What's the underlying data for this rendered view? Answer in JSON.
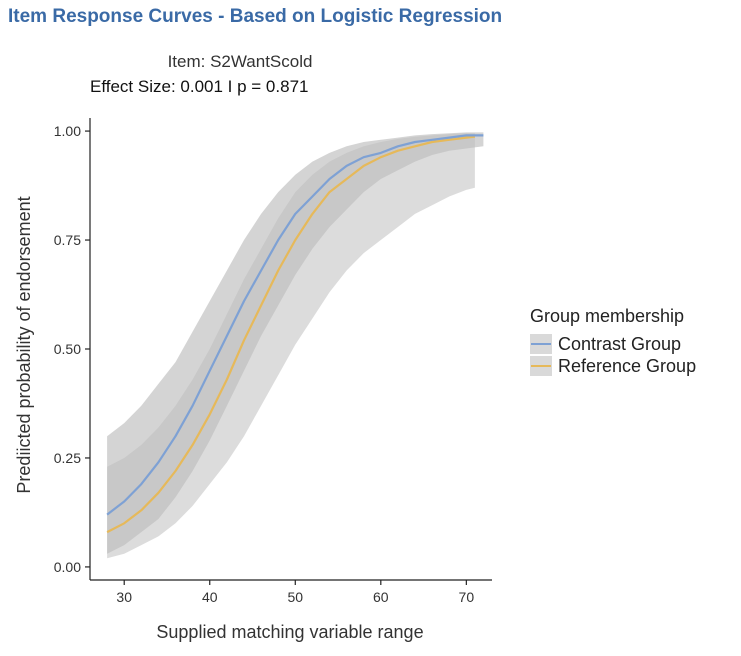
{
  "page": {
    "heading": "Item Response Curves - Based on Logistic Regression"
  },
  "chart_data": {
    "type": "line",
    "title_line1": "Item:  S2WantScold",
    "title_line2": "Effect Size:  0.001  I p =  0.871",
    "xlabel": "Supplied matching variable range",
    "ylabel": "Prediicted probability of endorsement",
    "xlim": [
      26,
      73
    ],
    "ylim": [
      -0.03,
      1.03
    ],
    "x_ticks": [
      30,
      40,
      50,
      60,
      70
    ],
    "y_ticks": [
      "0.00",
      "0.25",
      "0.50",
      "0.75",
      "1.00"
    ],
    "grid": false,
    "legend": {
      "title": "Group membership",
      "placement": "right"
    },
    "series": [
      {
        "name": "Contrast Group",
        "color": "#7ea1d4",
        "x": [
          28,
          30,
          32,
          34,
          36,
          38,
          40,
          42,
          44,
          46,
          48,
          50,
          52,
          54,
          56,
          58,
          60,
          62,
          64,
          66,
          68,
          70,
          72
        ],
        "y": [
          0.12,
          0.15,
          0.19,
          0.24,
          0.3,
          0.37,
          0.45,
          0.53,
          0.61,
          0.68,
          0.75,
          0.81,
          0.85,
          0.89,
          0.92,
          0.94,
          0.95,
          0.965,
          0.975,
          0.98,
          0.985,
          0.99,
          0.99
        ],
        "lower": [
          0.03,
          0.05,
          0.08,
          0.11,
          0.16,
          0.22,
          0.29,
          0.37,
          0.45,
          0.53,
          0.6,
          0.67,
          0.73,
          0.78,
          0.82,
          0.86,
          0.89,
          0.91,
          0.93,
          0.945,
          0.955,
          0.96,
          0.965
        ],
        "upper": [
          0.3,
          0.33,
          0.37,
          0.42,
          0.47,
          0.54,
          0.61,
          0.68,
          0.75,
          0.81,
          0.86,
          0.9,
          0.93,
          0.95,
          0.965,
          0.975,
          0.98,
          0.985,
          0.99,
          0.993,
          0.995,
          0.997,
          0.997
        ]
      },
      {
        "name": "Reference Group",
        "color": "#e6b95a",
        "x": [
          28,
          30,
          32,
          34,
          36,
          38,
          40,
          42,
          44,
          46,
          48,
          50,
          52,
          54,
          56,
          58,
          60,
          62,
          64,
          66,
          68,
          70,
          71
        ],
        "y": [
          0.08,
          0.1,
          0.13,
          0.17,
          0.22,
          0.28,
          0.35,
          0.43,
          0.52,
          0.6,
          0.68,
          0.75,
          0.81,
          0.86,
          0.89,
          0.92,
          0.94,
          0.955,
          0.965,
          0.975,
          0.98,
          0.985,
          0.987
        ],
        "lower": [
          0.02,
          0.03,
          0.05,
          0.07,
          0.1,
          0.14,
          0.19,
          0.24,
          0.3,
          0.37,
          0.44,
          0.51,
          0.57,
          0.63,
          0.68,
          0.72,
          0.75,
          0.78,
          0.81,
          0.83,
          0.85,
          0.865,
          0.87
        ],
        "upper": [
          0.23,
          0.25,
          0.28,
          0.32,
          0.37,
          0.43,
          0.5,
          0.58,
          0.66,
          0.73,
          0.8,
          0.86,
          0.9,
          0.93,
          0.95,
          0.965,
          0.975,
          0.982,
          0.987,
          0.99,
          0.993,
          0.995,
          0.995
        ]
      }
    ]
  }
}
